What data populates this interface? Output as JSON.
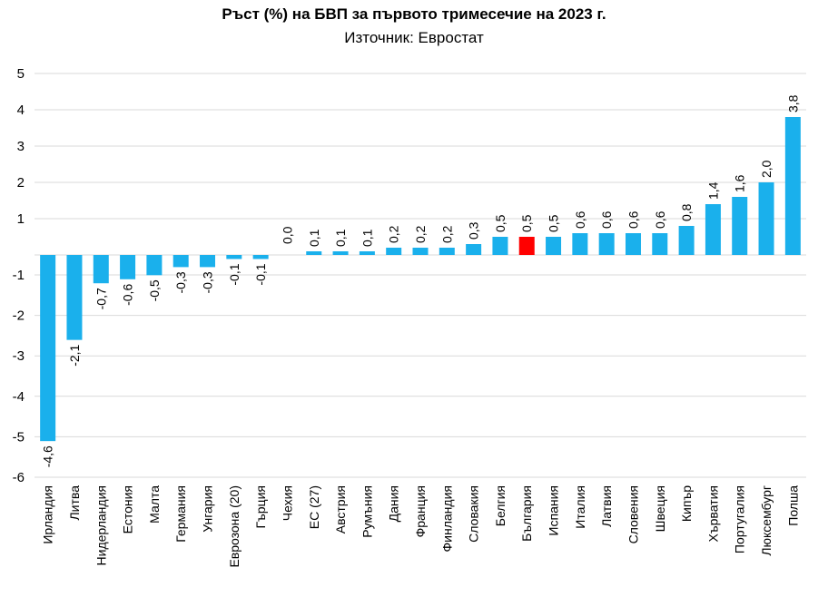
{
  "chart_data": {
    "type": "bar",
    "title": "Ръст (%) на БВП за първото тримесечие на 2023 г.",
    "subtitle": "Източник: Евростат",
    "ylim": [
      -6,
      5
    ],
    "yticks": [
      "5",
      "4",
      "3",
      "2",
      "1",
      "-1",
      "-2",
      "-3",
      "-4",
      "-5",
      "-6"
    ],
    "grid": true,
    "colors": {
      "bar": "#1AB0EC",
      "highlight": "#FF0000",
      "grid": "#D9D9D9"
    },
    "highlight_category": "България",
    "categories": [
      "Ирландия",
      "Литва",
      "Нидерландия",
      "Естония",
      "Малта",
      "Германия",
      "Унгария",
      "Еврозона (20)",
      "Гърция",
      "Чехия",
      "ЕС (27)",
      "Австрия",
      "Румъния",
      "Дания",
      "Франция",
      "Финландия",
      "Словакия",
      "Белгия",
      "България",
      "Испания",
      "Италия",
      "Латвия",
      "Словения",
      "Швеция",
      "Кипър",
      "Хърватия",
      "Португалия",
      "Люксембург",
      "Полша"
    ],
    "values": [
      -4.6,
      -2.1,
      -0.7,
      -0.6,
      -0.5,
      -0.3,
      -0.3,
      -0.1,
      -0.1,
      0.0,
      0.1,
      0.1,
      0.1,
      0.2,
      0.2,
      0.2,
      0.3,
      0.5,
      0.5,
      0.5,
      0.6,
      0.6,
      0.6,
      0.6,
      0.8,
      1.4,
      1.6,
      2.0,
      3.8
    ],
    "data_labels": [
      "-4,6",
      "-2,1",
      "-0,7",
      "-0,6",
      "-0,5",
      "-0,3",
      "-0,3",
      "-0,1",
      "-0,1",
      "0,0",
      "0,1",
      "0,1",
      "0,1",
      "0,2",
      "0,2",
      "0,2",
      "0,3",
      "0,5",
      "0,5",
      "0,5",
      "0,6",
      "0,6",
      "0,6",
      "0,6",
      "0,8",
      "1,4",
      "1,6",
      "2,0",
      "3,8"
    ]
  }
}
